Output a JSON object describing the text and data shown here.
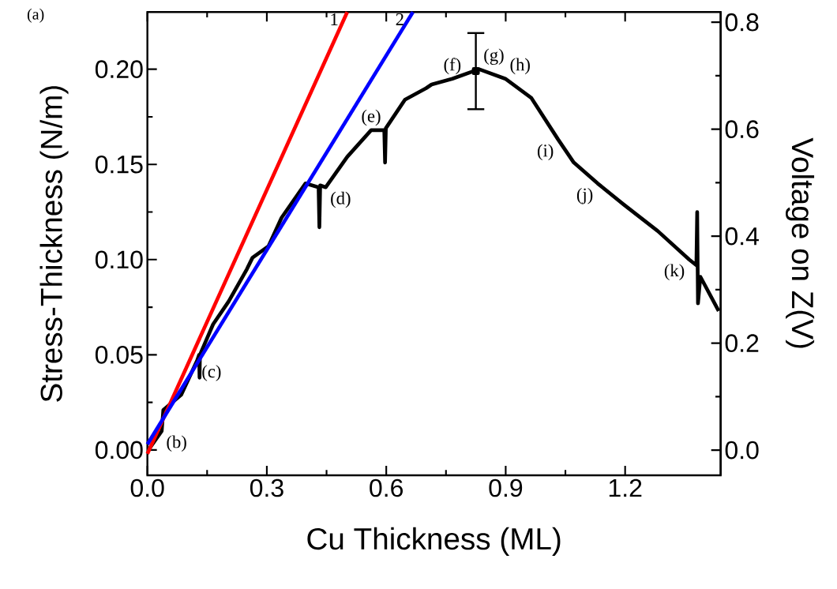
{
  "chart_data": {
    "type": "line",
    "xlabel": "Cu Thickness (ML)",
    "ylabel": "Stress-Thickness (N/m)",
    "y2label": "Voltage on Z(V)",
    "xlim": [
      0,
      1.44
    ],
    "ylim": [
      -0.0133,
      0.23
    ],
    "y2lim": [
      -0.047,
      0.819
    ],
    "xticks": [
      {
        "value": 0,
        "label": "0.0"
      },
      {
        "value": 0.3,
        "label": "0.3"
      },
      {
        "value": 0.6,
        "label": "0.6"
      },
      {
        "value": 0.9,
        "label": "0.9"
      },
      {
        "value": 1.2,
        "label": "1.2"
      }
    ],
    "yticks": [
      {
        "value": 0,
        "label": "0.00"
      },
      {
        "value": 0.05,
        "label": "0.05"
      },
      {
        "value": 0.1,
        "label": "0.10"
      },
      {
        "value": 0.15,
        "label": "0.15"
      },
      {
        "value": 0.2,
        "label": "0.20"
      }
    ],
    "y2ticks": [
      {
        "value": 0,
        "label": "0.0"
      },
      {
        "value": 0.2,
        "label": "0.2"
      },
      {
        "value": 0.4,
        "label": "0.4"
      },
      {
        "value": 0.6,
        "label": "0.6"
      },
      {
        "value": 0.8,
        "label": "0.8"
      }
    ],
    "series": [
      {
        "color": "#000000",
        "x": [
          0.006,
          0.036,
          0.04,
          0.085,
          0.125,
          0.13,
          0.131,
          0.132,
          0.165,
          0.204,
          0.25,
          0.264,
          0.304,
          0.337,
          0.397,
          0.43,
          0.432,
          0.434,
          0.448,
          0.502,
          0.562,
          0.595,
          0.597,
          0.599,
          0.647,
          0.7,
          0.714,
          0.766,
          0.833,
          0.899,
          0.964,
          1.032,
          1.071,
          1.131,
          1.196,
          1.282,
          1.361,
          1.379,
          1.381,
          1.383,
          1.389,
          1.435
        ],
        "values": [
          0.001,
          0.01,
          0.021,
          0.029,
          0.047,
          0.05,
          0.038,
          0.05,
          0.066,
          0.078,
          0.095,
          0.101,
          0.107,
          0.122,
          0.14,
          0.138,
          0.117,
          0.139,
          0.138,
          0.154,
          0.168,
          0.168,
          0.151,
          0.169,
          0.184,
          0.19,
          0.192,
          0.195,
          0.2,
          0.195,
          0.185,
          0.163,
          0.151,
          0.14,
          0.129,
          0.115,
          0.1,
          0.097,
          0.125,
          0.077,
          0.091,
          0.073
        ]
      },
      {
        "name": "1",
        "color": "#ff0000",
        "x": [
          0,
          0.502
        ],
        "values": [
          -0.002,
          0.23
        ]
      },
      {
        "name": "2",
        "color": "#0000ff",
        "x": [
          0,
          0.667
        ],
        "values": [
          0.003,
          0.23
        ]
      },
      {
        "color": "#000000",
        "x": [
          0.825
        ],
        "values": [
          0.199
        ],
        "errors": [
          0.02
        ],
        "marker": "square"
      }
    ],
    "annotations": [
      "(a)",
      {
        "text": "(b)",
        "x": 0.036,
        "y": 0.01
      },
      {
        "text": "(c)",
        "x": 0.125,
        "y": 0.047
      },
      {
        "text": "(d)",
        "x": 0.448,
        "y": 0.138
      },
      {
        "text": "(e)",
        "x": 0.562,
        "y": 0.168
      },
      {
        "text": "(f)",
        "x": 0.766,
        "y": 0.195
      },
      {
        "text": "(g)",
        "x": 0.833,
        "y": 0.2
      },
      {
        "text": "(h)",
        "x": 0.899,
        "y": 0.195
      },
      {
        "text": "(i)",
        "x": 1.032,
        "y": 0.163
      },
      {
        "text": "(j)",
        "x": 1.131,
        "y": 0.14
      },
      {
        "text": "(k)",
        "x": 1.361,
        "y": 0.1
      }
    ]
  }
}
